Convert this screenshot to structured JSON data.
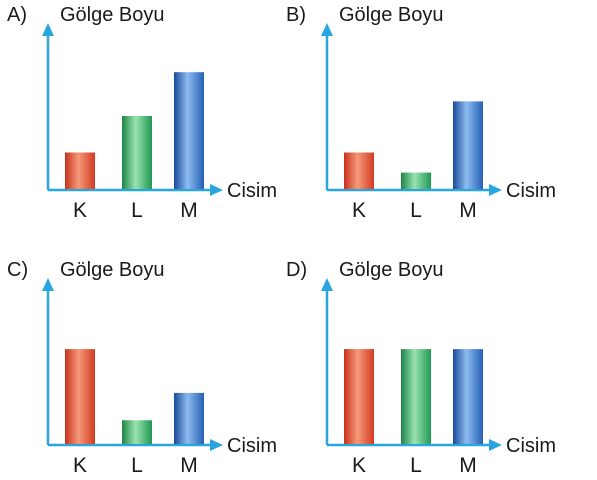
{
  "palette": {
    "axis": "#29a6e0",
    "red": [
      "#c8301c",
      "#f28a6a",
      "#d8402a"
    ],
    "green": [
      "#1c8a4a",
      "#8fd9a6",
      "#22a056"
    ],
    "blue": [
      "#1c4f9e",
      "#7fb0ea",
      "#2a64b8"
    ]
  },
  "chart_data": [
    {
      "type": "bar",
      "option": "A)",
      "ylabel": "Gölge Boyu",
      "xlabel": "Cisim",
      "categories": [
        "K",
        "L",
        "M"
      ],
      "values": [
        1,
        2,
        3.2
      ],
      "colors": [
        "red",
        "green",
        "blue"
      ]
    },
    {
      "type": "bar",
      "option": "B)",
      "ylabel": "Gölge Boyu",
      "xlabel": "Cisim",
      "categories": [
        "K",
        "L",
        "M"
      ],
      "values": [
        1,
        0.45,
        2.4
      ],
      "colors": [
        "red",
        "green",
        "blue"
      ]
    },
    {
      "type": "bar",
      "option": "C)",
      "ylabel": "Gölge Boyu",
      "xlabel": "Cisim",
      "categories": [
        "K",
        "L",
        "M"
      ],
      "values": [
        2.6,
        0.65,
        1.4
      ],
      "colors": [
        "red",
        "green",
        "blue"
      ]
    },
    {
      "type": "bar",
      "option": "D)",
      "ylabel": "Gölge Boyu",
      "xlabel": "Cisim",
      "categories": [
        "K",
        "L",
        "M"
      ],
      "values": [
        2.6,
        2.6,
        2.6
      ],
      "colors": [
        "red",
        "green",
        "blue"
      ]
    }
  ]
}
